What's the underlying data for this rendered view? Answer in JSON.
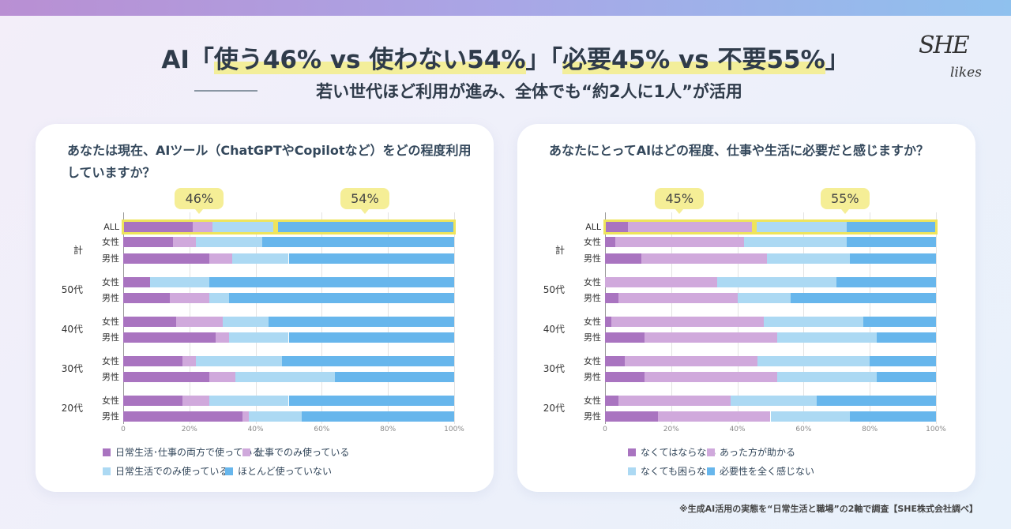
{
  "header": {
    "title_prefix": "AI「",
    "title_hl1": "使う46% vs 使わない54%",
    "title_mid": "」「",
    "title_hl2": "必要45% vs 不要55%",
    "title_suffix": "」",
    "subtitle": "若い世代ほど利用が進み、全体でも“約2人に1人”が活用",
    "logo_line1": "SHE",
    "logo_line2": "likes"
  },
  "footnote": "※生成AI活用の実態を“日常生活と職場”の2軸で調査【SHE株式会社調べ】",
  "colors": [
    "#a974c0",
    "#d0a9dc",
    "#acd9f3",
    "#67b6ec"
  ],
  "chart_data": [
    {
      "type": "bar",
      "stacked": true,
      "orientation": "horizontal",
      "title": "あなたは現在、AIツール（ChatGPTやCopilotなど）をどの程度利用していますか？",
      "groups": [
        {
          "label": "",
          "rows": [
            "ALL"
          ]
        },
        {
          "label": "計",
          "rows": [
            "女性",
            "男性"
          ]
        },
        {
          "label": "50代",
          "rows": [
            "女性",
            "男性"
          ]
        },
        {
          "label": "40代",
          "rows": [
            "女性",
            "男性"
          ]
        },
        {
          "label": "30代",
          "rows": [
            "女性",
            "男性"
          ]
        },
        {
          "label": "20代",
          "rows": [
            "女性",
            "男性"
          ]
        }
      ],
      "series": [
        {
          "name": "日常生活･仕事の両方で使っている",
          "values": [
            21,
            15,
            26,
            8,
            14,
            16,
            28,
            18,
            26,
            18,
            36
          ]
        },
        {
          "name": "仕事でのみ使っている",
          "values": [
            6,
            7,
            7,
            0,
            12,
            14,
            4,
            4,
            8,
            8,
            2
          ]
        },
        {
          "name": "日常生活でのみ使っている",
          "values": [
            19,
            20,
            17,
            18,
            6,
            14,
            18,
            26,
            30,
            24,
            16
          ]
        },
        {
          "name": "ほとんど使っていない",
          "values": [
            54,
            58,
            50,
            74,
            68,
            56,
            50,
            52,
            36,
            50,
            46
          ]
        }
      ],
      "xticks": [
        "0",
        "20%",
        "40%",
        "60%",
        "80%",
        "100%"
      ],
      "xlim": [
        0,
        100
      ],
      "callouts": [
        "46%",
        "54%"
      ],
      "split": 46
    },
    {
      "type": "bar",
      "stacked": true,
      "orientation": "horizontal",
      "title": "あなたにとってAIはどの程度、仕事や生活に必要だと感じますか？",
      "groups": [
        {
          "label": "",
          "rows": [
            "ALL"
          ]
        },
        {
          "label": "計",
          "rows": [
            "女性",
            "男性"
          ]
        },
        {
          "label": "50代",
          "rows": [
            "女性",
            "男性"
          ]
        },
        {
          "label": "40代",
          "rows": [
            "女性",
            "男性"
          ]
        },
        {
          "label": "30代",
          "rows": [
            "女性",
            "男性"
          ]
        },
        {
          "label": "20代",
          "rows": [
            "女性",
            "男性"
          ]
        }
      ],
      "series": [
        {
          "name": "なくてはならない",
          "values": [
            7,
            3,
            11,
            0,
            4,
            2,
            12,
            6,
            12,
            4,
            16
          ]
        },
        {
          "name": "あった方が助かる",
          "values": [
            38,
            39,
            38,
            34,
            36,
            46,
            40,
            40,
            40,
            34,
            34
          ]
        },
        {
          "name": "なくても困らない",
          "values": [
            28,
            31,
            25,
            36,
            16,
            30,
            30,
            34,
            30,
            26,
            24
          ]
        },
        {
          "name": "必要性を全く感じない",
          "values": [
            27,
            27,
            26,
            30,
            44,
            22,
            18,
            20,
            18,
            36,
            26
          ]
        }
      ],
      "xticks": [
        "0",
        "20%",
        "40%",
        "60%",
        "80%",
        "100%"
      ],
      "xlim": [
        0,
        100
      ],
      "callouts": [
        "45%",
        "55%"
      ],
      "split": 45
    }
  ]
}
